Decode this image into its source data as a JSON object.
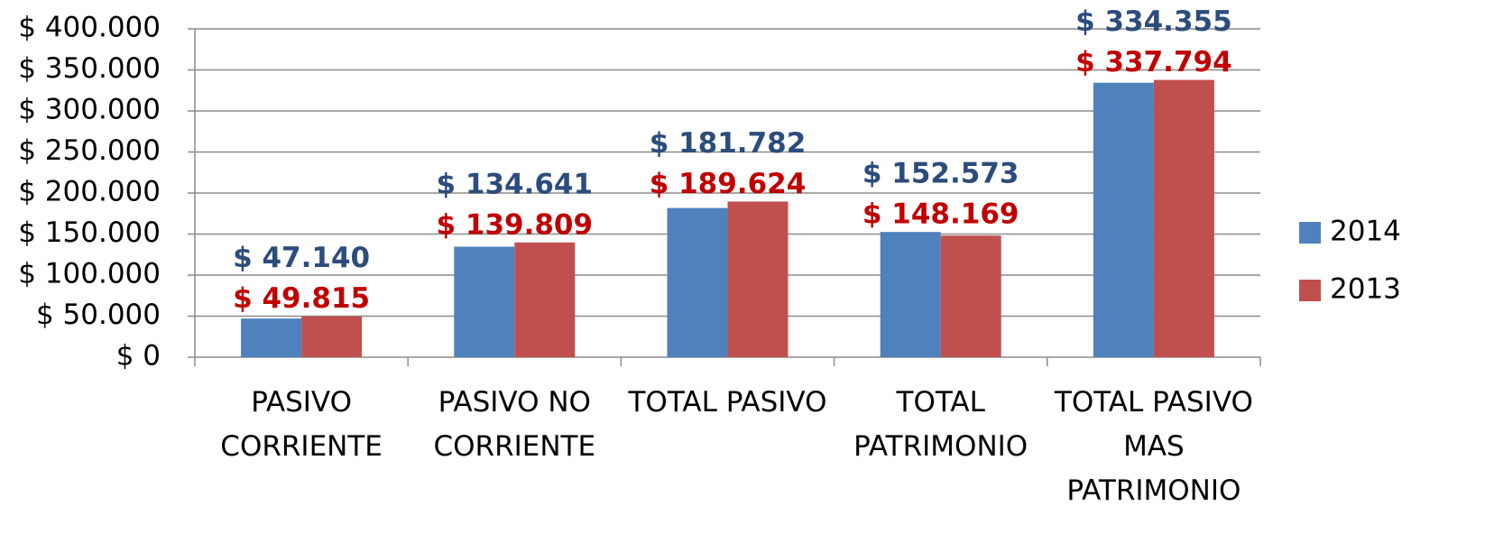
{
  "chart_data": {
    "type": "bar",
    "categories": [
      "PASIVO CORRIENTE",
      "PASIVO NO CORRIENTE",
      "TOTAL PASIVO",
      "TOTAL PATRIMONIO",
      "TOTAL PASIVO MAS PATRIMONIO"
    ],
    "series": [
      {
        "name": "2014",
        "color": "#4f81bd",
        "label_color": "#2c4d7c",
        "values": [
          47140,
          134641,
          181782,
          152573,
          334355
        ],
        "value_labels": [
          "$ 47.140",
          "$ 134.641",
          "$ 181.782",
          "$ 152.573",
          "$ 334.355"
        ]
      },
      {
        "name": "2013",
        "color": "#c0504d",
        "label_color": "#c00000",
        "values": [
          49815,
          139809,
          189624,
          148169,
          337794
        ],
        "value_labels": [
          "$ 49.815",
          "$ 139.809",
          "$ 189.624",
          "$ 148.169",
          "$ 337.794"
        ]
      }
    ],
    "ylim": [
      0,
      400000
    ],
    "yticks": [
      {
        "value": 0,
        "label": "$ 0"
      },
      {
        "value": 50000,
        "label": "$ 50.000"
      },
      {
        "value": 100000,
        "label": "$ 100.000"
      },
      {
        "value": 150000,
        "label": "$ 150.000"
      },
      {
        "value": 200000,
        "label": "$ 200.000"
      },
      {
        "value": 250000,
        "label": "$ 250.000"
      },
      {
        "value": 300000,
        "label": "$ 300.000"
      },
      {
        "value": 350000,
        "label": "$ 350.000"
      },
      {
        "value": 400000,
        "label": "$ 400.000"
      }
    ],
    "grid": true,
    "legend": "right"
  }
}
